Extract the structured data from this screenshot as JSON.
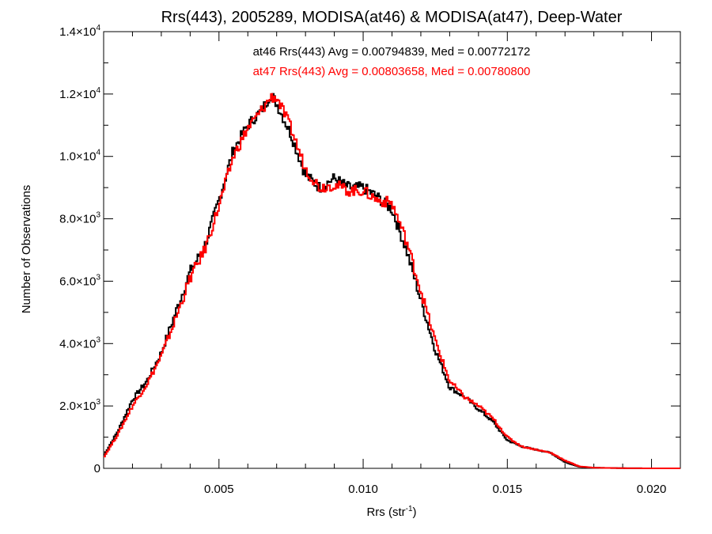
{
  "chart_data": {
    "type": "line",
    "title": "Rrs(443), 2005289, MODISA(at46) & MODISA(at47), Deep-Water",
    "xlabel": "Rrs (str",
    "xlabel_sup": "-1",
    "xlabel_suffix": ")",
    "ylabel": "Number of Observations",
    "xlim": [
      0.001,
      0.021
    ],
    "ylim": [
      0,
      14000
    ],
    "x_ticks": [
      {
        "value": 0.005,
        "label": "0.005"
      },
      {
        "value": 0.01,
        "label": "0.010"
      },
      {
        "value": 0.015,
        "label": "0.015"
      },
      {
        "value": 0.02,
        "label": "0.020"
      }
    ],
    "y_ticks": [
      {
        "value": 0,
        "mant": "0",
        "exp": ""
      },
      {
        "value": 2000,
        "mant": "2.0×10",
        "exp": "3"
      },
      {
        "value": 4000,
        "mant": "4.0×10",
        "exp": "3"
      },
      {
        "value": 6000,
        "mant": "6.0×10",
        "exp": "3"
      },
      {
        "value": 8000,
        "mant": "8.0×10",
        "exp": "3"
      },
      {
        "value": 10000,
        "mant": "1.0×10",
        "exp": "4"
      },
      {
        "value": 12000,
        "mant": "1.2×10",
        "exp": "4"
      },
      {
        "value": 14000,
        "mant": "1.4×10",
        "exp": "4"
      }
    ],
    "annotations": [
      {
        "text": "at46 Rrs(443) Avg = 0.00794839, Med = 0.00772172",
        "color": "#000000"
      },
      {
        "text": "at47 Rrs(443) Avg = 0.00803658, Med = 0.00780800",
        "color": "#ff0000"
      }
    ],
    "series": [
      {
        "color": "#000000",
        "x": [
          0.001,
          0.0015,
          0.002,
          0.0025,
          0.003,
          0.0035,
          0.004,
          0.0045,
          0.005,
          0.0055,
          0.006,
          0.0065,
          0.0068,
          0.007,
          0.0075,
          0.008,
          0.0085,
          0.009,
          0.0095,
          0.01,
          0.0105,
          0.011,
          0.0115,
          0.012,
          0.0125,
          0.013,
          0.0135,
          0.014,
          0.0145,
          0.015,
          0.0155,
          0.016,
          0.0165,
          0.017,
          0.0175,
          0.018,
          0.019,
          0.02,
          0.021
        ],
        "y": [
          400,
          1200,
          2200,
          2800,
          3700,
          5000,
          6300,
          7100,
          8600,
          10200,
          11000,
          11500,
          12000,
          11700,
          10700,
          9400,
          9000,
          9300,
          9000,
          9000,
          8700,
          8300,
          7000,
          5400,
          3800,
          2600,
          2300,
          1900,
          1500,
          900,
          700,
          600,
          500,
          200,
          50,
          20,
          5,
          0,
          0
        ]
      },
      {
        "color": "#ff0000",
        "x": [
          0.001,
          0.0015,
          0.002,
          0.0025,
          0.003,
          0.0035,
          0.004,
          0.0045,
          0.005,
          0.0055,
          0.006,
          0.0065,
          0.0068,
          0.007,
          0.0075,
          0.008,
          0.0085,
          0.009,
          0.0095,
          0.01,
          0.0105,
          0.011,
          0.0115,
          0.012,
          0.0125,
          0.013,
          0.0135,
          0.014,
          0.0145,
          0.015,
          0.0155,
          0.016,
          0.0165,
          0.017,
          0.0175,
          0.018,
          0.019,
          0.02,
          0.021
        ],
        "y": [
          350,
          1100,
          2000,
          2700,
          3600,
          4800,
          6100,
          7000,
          8400,
          10000,
          10900,
          11500,
          11900,
          11900,
          10900,
          9600,
          9000,
          9100,
          8900,
          8900,
          8600,
          8500,
          7300,
          5700,
          4100,
          2800,
          2300,
          2000,
          1600,
          1000,
          700,
          600,
          500,
          250,
          60,
          20,
          5,
          0,
          0
        ]
      }
    ]
  }
}
